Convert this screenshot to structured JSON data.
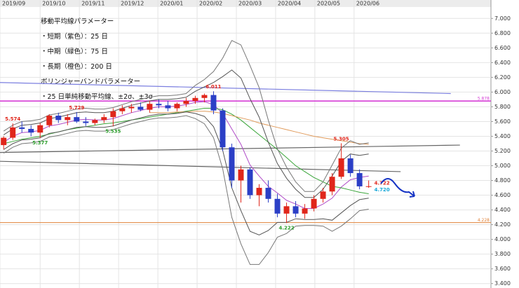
{
  "chart_data": {
    "type": "candlestick",
    "notes": [
      "移動平均線パラメーター",
      "・短期（紫色）：25 日",
      "・中期（緑色）：75 日",
      "・長期（橙色）：200 日",
      "ボリンジャーバンドパラメーター",
      "・25 日単純移動平均線、±2σ、±3σ"
    ],
    "x": [
      0,
      1,
      2,
      3,
      4,
      5,
      6,
      7,
      8,
      9,
      10,
      11,
      12,
      13,
      14,
      15,
      16,
      17,
      18,
      19,
      20,
      21,
      22,
      23,
      24,
      25,
      26,
      27,
      28,
      29,
      30,
      31,
      32,
      33,
      34,
      35,
      36,
      37,
      38,
      39,
      40
    ],
    "candles": {
      "up_color": "#e0261b",
      "down_color": "#2b3fc6",
      "open": [
        5.28,
        5.38,
        5.52,
        5.5,
        5.45,
        5.55,
        5.68,
        5.62,
        5.66,
        5.6,
        5.58,
        5.62,
        5.66,
        5.74,
        5.78,
        5.8,
        5.76,
        5.84,
        5.82,
        5.78,
        5.84,
        5.88,
        5.92,
        5.96,
        5.75,
        5.25,
        4.8,
        4.95,
        4.6,
        4.7,
        4.55,
        4.35,
        4.45,
        4.35,
        4.42,
        4.55,
        4.65,
        4.85,
        5.1,
        4.9,
        4.72
      ],
      "high": [
        5.4,
        5.574,
        5.6,
        5.55,
        5.58,
        5.7,
        5.72,
        5.7,
        5.729,
        5.66,
        5.64,
        5.7,
        5.78,
        5.82,
        5.84,
        5.86,
        5.88,
        5.9,
        5.88,
        5.86,
        5.92,
        5.95,
        5.98,
        6.011,
        5.78,
        5.3,
        5.0,
        4.98,
        4.75,
        4.8,
        4.62,
        4.5,
        4.52,
        4.48,
        4.6,
        4.7,
        4.9,
        5.305,
        5.15,
        4.95,
        4.8
      ],
      "low": [
        5.22,
        5.35,
        5.45,
        5.4,
        5.377,
        5.52,
        5.58,
        5.55,
        5.58,
        5.54,
        5.55,
        5.58,
        5.535,
        5.7,
        5.72,
        5.74,
        5.72,
        5.78,
        5.74,
        5.74,
        5.8,
        5.84,
        5.86,
        5.7,
        5.2,
        4.7,
        4.5,
        4.55,
        4.45,
        4.5,
        4.3,
        4.222,
        4.3,
        4.28,
        4.38,
        4.5,
        4.6,
        4.82,
        4.85,
        4.68,
        4.7
      ],
      "close": [
        5.38,
        5.52,
        5.5,
        5.45,
        5.55,
        5.68,
        5.62,
        5.66,
        5.6,
        5.58,
        5.62,
        5.66,
        5.74,
        5.78,
        5.8,
        5.76,
        5.84,
        5.82,
        5.78,
        5.84,
        5.88,
        5.92,
        5.96,
        5.75,
        5.25,
        4.8,
        4.95,
        4.6,
        4.7,
        4.55,
        4.35,
        4.45,
        4.35,
        4.42,
        4.55,
        4.65,
        4.85,
        5.1,
        4.9,
        4.72,
        4.722
      ]
    },
    "series": [
      {
        "name": "25",
        "color": "#b04cc8",
        "values": [
          5.32,
          5.4,
          5.45,
          5.46,
          5.48,
          5.54,
          5.56,
          5.59,
          5.62,
          5.63,
          5.62,
          5.62,
          5.64,
          5.68,
          5.72,
          5.75,
          5.78,
          5.8,
          5.8,
          5.81,
          5.83,
          5.86,
          5.87,
          5.83,
          5.71,
          5.5,
          5.29,
          5.01,
          4.86,
          4.72,
          4.63,
          4.53,
          4.48,
          4.42,
          4.42,
          4.48,
          4.56,
          4.71,
          4.81,
          4.84,
          4.86
        ]
      },
      {
        "name": "75",
        "color": "#3aa53a",
        "values": [
          5.3,
          5.33,
          5.36,
          5.38,
          5.4,
          5.43,
          5.46,
          5.49,
          5.51,
          5.53,
          5.55,
          5.57,
          5.58,
          5.6,
          5.62,
          5.64,
          5.66,
          5.68,
          5.7,
          5.72,
          5.74,
          5.76,
          5.78,
          5.78,
          5.76,
          5.7,
          5.62,
          5.52,
          5.42,
          5.32,
          5.22,
          5.11,
          5.0,
          4.92,
          4.84,
          4.78,
          4.72,
          4.7,
          4.67,
          4.64,
          4.62
        ]
      },
      {
        "name": "200",
        "color": "#e09a5a",
        "values": [
          null,
          null,
          null,
          null,
          null,
          null,
          null,
          null,
          null,
          null,
          null,
          null,
          null,
          null,
          null,
          null,
          5.72,
          5.72,
          5.72,
          5.73,
          5.73,
          5.74,
          5.74,
          5.73,
          5.71,
          5.68,
          5.65,
          5.62,
          5.58,
          5.55,
          5.52,
          5.49,
          5.46,
          5.43,
          5.4,
          5.38,
          5.36,
          5.34,
          5.32,
          5.3,
          5.29
        ]
      },
      {
        "name": "+2σ",
        "color": "#555555",
        "values": [
          5.42,
          5.5,
          5.55,
          5.56,
          5.58,
          5.64,
          5.66,
          5.69,
          5.72,
          5.73,
          5.72,
          5.72,
          5.74,
          5.78,
          5.82,
          5.85,
          5.88,
          5.9,
          5.9,
          5.91,
          5.93,
          6.01,
          6.07,
          6.13,
          6.21,
          6.3,
          6.19,
          5.91,
          5.66,
          5.32,
          5.03,
          4.83,
          4.68,
          4.57,
          4.57,
          4.68,
          4.86,
          5.06,
          5.16,
          5.14,
          5.16
        ]
      },
      {
        "name": "-2σ",
        "color": "#555555",
        "values": [
          5.22,
          5.3,
          5.35,
          5.36,
          5.38,
          5.44,
          5.46,
          5.49,
          5.52,
          5.53,
          5.52,
          5.52,
          5.54,
          5.58,
          5.62,
          5.65,
          5.68,
          5.7,
          5.7,
          5.71,
          5.73,
          5.71,
          5.67,
          5.53,
          5.21,
          4.7,
          4.39,
          4.11,
          4.06,
          4.12,
          4.23,
          4.23,
          4.28,
          4.27,
          4.27,
          4.28,
          4.26,
          4.36,
          4.46,
          4.54,
          4.56
        ]
      },
      {
        "name": "+3σ",
        "color": "#777777",
        "values": [
          5.47,
          5.55,
          5.6,
          5.61,
          5.63,
          5.69,
          5.71,
          5.74,
          5.77,
          5.78,
          5.77,
          5.77,
          5.79,
          5.83,
          5.87,
          5.9,
          5.93,
          5.95,
          5.95,
          5.96,
          5.98,
          6.09,
          6.17,
          6.28,
          6.46,
          6.7,
          6.64,
          6.36,
          6.06,
          5.62,
          5.23,
          4.98,
          4.78,
          4.65,
          4.65,
          4.78,
          5.01,
          5.24,
          5.34,
          5.29,
          5.31
        ]
      },
      {
        "name": "-3σ",
        "color": "#777777",
        "values": [
          5.17,
          5.25,
          5.3,
          5.31,
          5.33,
          5.39,
          5.41,
          5.44,
          5.47,
          5.48,
          5.47,
          5.47,
          5.49,
          5.53,
          5.57,
          5.6,
          5.63,
          5.65,
          5.65,
          5.66,
          5.68,
          5.64,
          5.57,
          5.38,
          4.96,
          4.3,
          3.94,
          3.66,
          3.66,
          3.82,
          4.03,
          4.08,
          4.18,
          4.19,
          4.19,
          4.18,
          4.11,
          4.18,
          4.28,
          4.39,
          4.41
        ]
      }
    ],
    "trend_lines": [
      {
        "color": "#7b7fe0",
        "x": [
          -0.4,
          49
        ],
        "y": [
          6.13,
          5.98
        ]
      },
      {
        "color": "#666666",
        "x": [
          -0.4,
          50
        ],
        "y": [
          5.18,
          5.28
        ]
      },
      {
        "color": "#666666",
        "x": [
          -0.4,
          43.5
        ],
        "y": [
          5.06,
          4.92
        ]
      }
    ],
    "horizontal_lines": [
      {
        "value": 5.878,
        "label": "5.878",
        "color": "#d63fd6"
      },
      {
        "value": 4.228,
        "label": "4.228",
        "color": "#e0823a"
      }
    ],
    "annotations": [
      {
        "text": "5.574",
        "x": 1,
        "value": 5.574,
        "color": "#e0261b",
        "place": "above"
      },
      {
        "text": "5.377",
        "x": 4,
        "value": 5.377,
        "color": "#2a9d2a",
        "place": "below"
      },
      {
        "text": "5.729",
        "x": 8,
        "value": 5.729,
        "color": "#e0261b",
        "place": "above"
      },
      {
        "text": "5.535",
        "x": 12,
        "value": 5.535,
        "color": "#2a9d2a",
        "place": "below"
      },
      {
        "text": "6.011",
        "x": 23,
        "value": 6.011,
        "color": "#e0261b",
        "place": "above"
      },
      {
        "text": "4.222",
        "x": 31,
        "value": 4.222,
        "color": "#2a9d2a",
        "place": "below"
      },
      {
        "text": "5.305",
        "x": 37,
        "value": 5.305,
        "color": "#e0261b",
        "place": "above"
      },
      {
        "text": "4.722",
        "x": 40,
        "value": 4.722,
        "color": "#e0261b",
        "place": "right-up"
      },
      {
        "text": "4.720",
        "x": 40,
        "value": 4.72,
        "color": "#1aa8d8",
        "place": "right-down"
      }
    ],
    "xlim": [
      -0.4,
      53.4
    ],
    "xticks": [
      {
        "value": -0.4,
        "label": "2019/09"
      },
      {
        "value": 4,
        "label": "2019/10"
      },
      {
        "value": 8.3,
        "label": "2019/11"
      },
      {
        "value": 12.6,
        "label": "2019/12"
      },
      {
        "value": 16.9,
        "label": "2020/01"
      },
      {
        "value": 21.2,
        "label": "2020/02"
      },
      {
        "value": 25.5,
        "label": "2020/03"
      },
      {
        "value": 29.8,
        "label": "2020/04"
      },
      {
        "value": 34.1,
        "label": "2020/05"
      },
      {
        "value": 38.4,
        "label": "2020/06"
      }
    ],
    "ylim": [
      3.34,
      7.25
    ],
    "yticks": [
      {
        "value": 3.4,
        "label": "3.400"
      },
      {
        "value": 3.6,
        "label": "3.600"
      },
      {
        "value": 3.8,
        "label": "3.800"
      },
      {
        "value": 4,
        "label": "4.000"
      },
      {
        "value": 4.2,
        "label": "4.200"
      },
      {
        "value": 4.4,
        "label": "4.400"
      },
      {
        "value": 4.6,
        "label": "4.600"
      },
      {
        "value": 4.8,
        "label": "4.800"
      },
      {
        "value": 5,
        "label": "5.000"
      },
      {
        "value": 5.2,
        "label": "5.200"
      },
      {
        "value": 5.4,
        "label": "5.400"
      },
      {
        "value": 5.6,
        "label": "5.600"
      },
      {
        "value": 5.8,
        "label": "5.800"
      },
      {
        "value": 6,
        "label": "6.000"
      },
      {
        "value": 6.2,
        "label": "6.200"
      },
      {
        "value": 6.4,
        "label": "6.400"
      },
      {
        "value": 6.6,
        "label": "6.600"
      },
      {
        "value": 6.8,
        "label": "6.800"
      },
      {
        "value": 7,
        "label": "7.000"
      }
    ],
    "grid": true
  }
}
